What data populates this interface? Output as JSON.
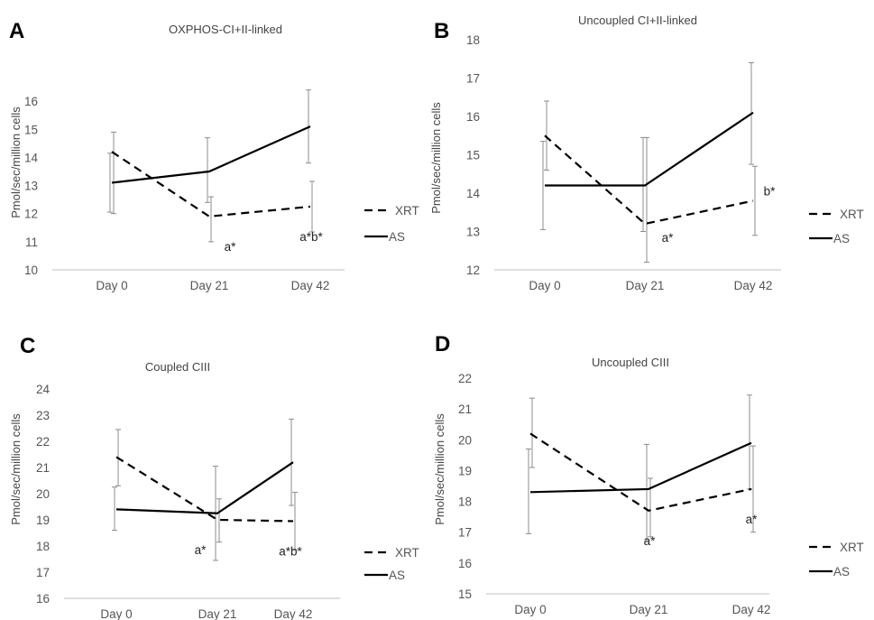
{
  "chart_data": [
    {
      "panel": "A",
      "type": "line",
      "title": "OXPHOS-CI+II-linked",
      "ylabel": "Pmol/sec/million cells",
      "xlabel": "",
      "categories": [
        "Day 0",
        "Day 21",
        "Day 42"
      ],
      "ylim": [
        10,
        17
      ],
      "yticks": [
        10,
        11,
        12,
        13,
        14,
        15,
        16
      ],
      "grid": false,
      "legend": "right",
      "series": [
        {
          "name": "XRT",
          "style": "dashed",
          "values": [
            14.2,
            11.9,
            12.25
          ],
          "err_low": [
            12.0,
            11.0,
            11.35
          ],
          "err_high": [
            14.9,
            12.6,
            13.15
          ]
        },
        {
          "name": "AS",
          "style": "solid",
          "values": [
            13.1,
            13.5,
            15.1
          ],
          "err_low": [
            12.05,
            12.4,
            13.8
          ],
          "err_high": [
            14.15,
            14.7,
            16.4
          ]
        }
      ],
      "annotations": [
        "",
        "a*",
        "a*b*"
      ]
    },
    {
      "panel": "B",
      "type": "line",
      "title": "Uncoupled CI+II-linked",
      "ylabel": "Pmol/sec/million cells",
      "xlabel": "",
      "categories": [
        "Day 0",
        "Day 21",
        "Day 42"
      ],
      "ylim": [
        12,
        18
      ],
      "yticks": [
        12,
        13,
        14,
        15,
        16,
        17,
        18
      ],
      "grid": false,
      "legend": "right",
      "series": [
        {
          "name": "XRT",
          "style": "dashed",
          "values": [
            15.5,
            13.2,
            13.8
          ],
          "err_low": [
            14.6,
            12.2,
            12.9
          ],
          "err_high": [
            16.4,
            15.45,
            14.7
          ]
        },
        {
          "name": "AS",
          "style": "solid",
          "values": [
            14.2,
            14.2,
            16.1
          ],
          "err_low": [
            13.05,
            13.0,
            14.75
          ],
          "err_high": [
            15.35,
            15.45,
            17.4
          ]
        }
      ],
      "annotations": [
        "",
        "a*",
        "b*"
      ]
    },
    {
      "panel": "C",
      "type": "line",
      "title": "Coupled CIII",
      "ylabel": "Pmol/sec/million cells",
      "xlabel": "",
      "categories": [
        "Day 0",
        "Day 21",
        "Day 42"
      ],
      "ylim": [
        16,
        24
      ],
      "yticks": [
        16,
        17,
        18,
        19,
        20,
        21,
        22,
        23,
        24
      ],
      "grid": false,
      "legend": "right",
      "series": [
        {
          "name": "XRT",
          "style": "dashed",
          "values": [
            21.4,
            19.0,
            18.95
          ],
          "err_low": [
            20.3,
            18.15,
            17.85
          ],
          "err_high": [
            22.45,
            19.8,
            20.05
          ]
        },
        {
          "name": "AS",
          "style": "solid",
          "values": [
            19.4,
            19.25,
            21.2
          ],
          "err_low": [
            18.6,
            17.45,
            19.55
          ],
          "err_high": [
            20.25,
            21.05,
            22.85
          ]
        }
      ],
      "annotations": [
        "",
        "a*",
        "a*b*"
      ]
    },
    {
      "panel": "D",
      "type": "line",
      "title": "Uncoupled CIII",
      "ylabel": "Pmol/sec/million cells",
      "xlabel": "",
      "categories": [
        "Day 0",
        "Day 21",
        "Day 42"
      ],
      "ylim": [
        15,
        22
      ],
      "yticks": [
        15,
        16,
        17,
        18,
        19,
        20,
        21,
        22
      ],
      "grid": false,
      "legend": "right",
      "series": [
        {
          "name": "XRT",
          "style": "dashed",
          "values": [
            20.2,
            17.7,
            18.4
          ],
          "err_low": [
            19.1,
            16.85,
            17.0
          ],
          "err_high": [
            21.35,
            18.75,
            19.8
          ]
        },
        {
          "name": "AS",
          "style": "solid",
          "values": [
            18.3,
            18.4,
            19.9
          ],
          "err_low": [
            16.95,
            16.7,
            18.4
          ],
          "err_high": [
            19.7,
            19.85,
            21.45
          ]
        }
      ],
      "annotations": [
        "",
        "a*",
        "a*"
      ]
    }
  ]
}
